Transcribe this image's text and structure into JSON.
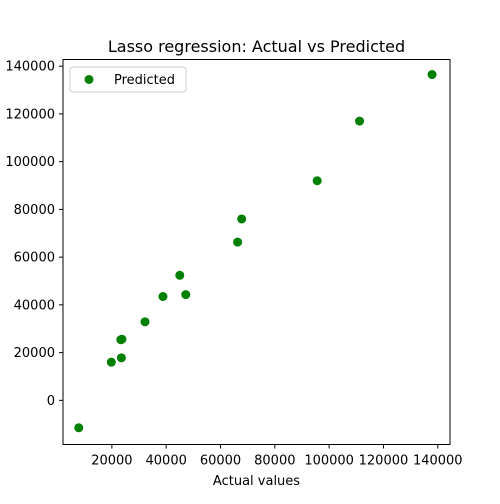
{
  "chart_data": {
    "type": "scatter",
    "title": "Lasso regression: Actual vs Predicted",
    "xlabel": "Actual values",
    "ylabel": "",
    "xlim": [
      2000,
      144500
    ],
    "ylim": [
      -18500,
      142800
    ],
    "xticks": [
      20000,
      40000,
      60000,
      80000,
      100000,
      120000,
      140000
    ],
    "xtick_labels": [
      "20000",
      "40000",
      "60000",
      "80000",
      "100000",
      "120000",
      "140000"
    ],
    "yticks": [
      0,
      20000,
      40000,
      60000,
      80000,
      100000,
      120000,
      140000
    ],
    "ytick_labels": [
      "0",
      "20000",
      "40000",
      "60000",
      "80000",
      "100000",
      "120000",
      "140000"
    ],
    "grid": false,
    "legend": {
      "position": "top-left"
    },
    "series": [
      {
        "name": "Predicted",
        "color": "#008000",
        "points": [
          [
            7800,
            -11500
          ],
          [
            19800,
            16000
          ],
          [
            23500,
            17800
          ],
          [
            23300,
            25400
          ],
          [
            23700,
            25600
          ],
          [
            32200,
            32900
          ],
          [
            38800,
            43500
          ],
          [
            45000,
            52400
          ],
          [
            47200,
            44300
          ],
          [
            66300,
            66300
          ],
          [
            67800,
            76000
          ],
          [
            95600,
            92000
          ],
          [
            111200,
            117000
          ],
          [
            137900,
            136500
          ]
        ]
      }
    ]
  }
}
